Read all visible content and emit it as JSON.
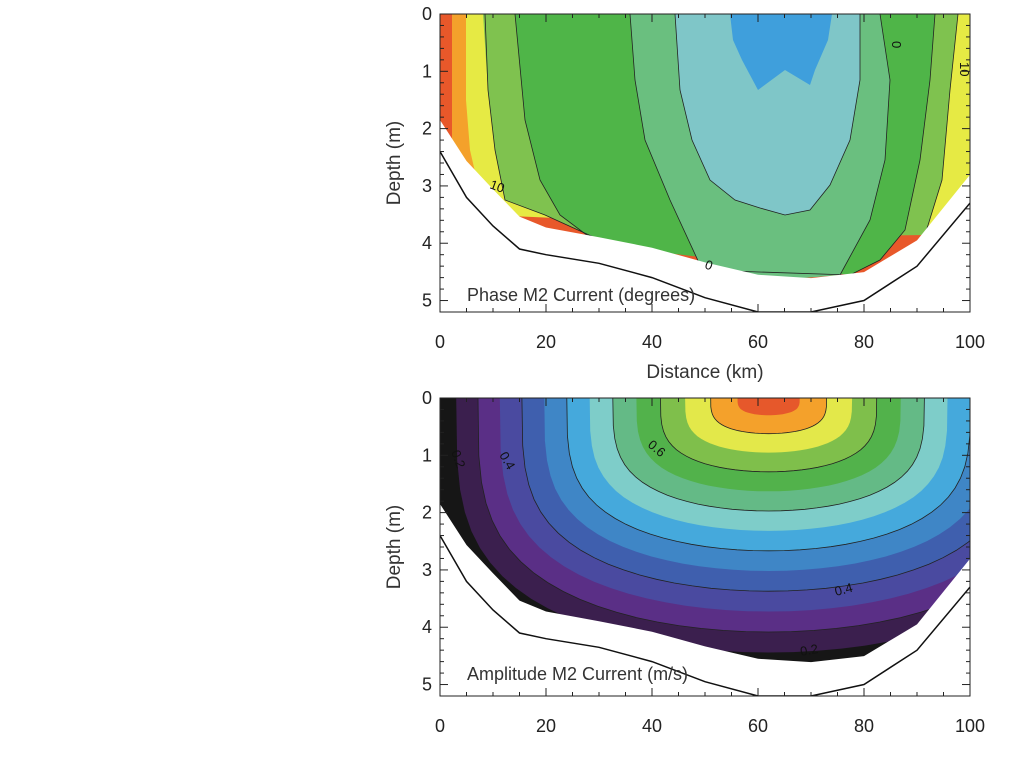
{
  "chart_data": [
    {
      "type": "heatmap",
      "title": "Phase M2 Current (degrees)",
      "xlabel": "Distance (km)",
      "ylabel": "Depth (m)",
      "xlim": [
        0,
        100
      ],
      "ylim": [
        5.2,
        0
      ],
      "x_ticks": [
        "0",
        "20",
        "40",
        "60",
        "80",
        "100"
      ],
      "y_ticks": [
        "0",
        "1",
        "2",
        "3",
        "4",
        "5"
      ],
      "x_tick_values": [
        0,
        20,
        40,
        60,
        80,
        100
      ],
      "y_tick_values": [
        0,
        1,
        2,
        3,
        4,
        5
      ],
      "bathymetry": {
        "x": [
          0,
          5,
          10,
          15,
          20,
          30,
          40,
          50,
          60,
          70,
          80,
          90,
          100
        ],
        "depth": [
          2.4,
          3.2,
          3.7,
          4.1,
          4.2,
          4.35,
          4.6,
          4.95,
          5.2,
          5.2,
          5.0,
          4.4,
          3.3
        ]
      },
      "colors": [
        "#e8582a",
        "#f4a12b",
        "#e6ea44",
        "#7fc24f",
        "#4fb548",
        "#6abf7f",
        "#7fc6c8",
        "#3f9fdc"
      ],
      "contour_labels": [
        "0",
        "10",
        "10",
        "0"
      ]
    },
    {
      "type": "heatmap",
      "title": "Amplitude M2 Current (m/s)",
      "xlabel": "",
      "ylabel": "Depth (m)",
      "xlim": [
        0,
        100
      ],
      "ylim": [
        5.2,
        0
      ],
      "x_ticks": [
        "0",
        "20",
        "40",
        "60",
        "80",
        "100"
      ],
      "y_ticks": [
        "0",
        "1",
        "2",
        "3",
        "4",
        "5"
      ],
      "x_tick_values": [
        0,
        20,
        40,
        60,
        80,
        100
      ],
      "y_tick_values": [
        0,
        1,
        2,
        3,
        4,
        5
      ],
      "bathymetry": {
        "x": [
          0,
          5,
          10,
          15,
          20,
          30,
          40,
          50,
          60,
          70,
          80,
          90,
          100
        ],
        "depth": [
          2.4,
          3.2,
          3.7,
          4.1,
          4.2,
          4.35,
          4.6,
          4.95,
          5.2,
          5.2,
          5.0,
          4.4,
          3.3
        ]
      },
      "levels": [
        0.0,
        0.05,
        0.1,
        0.15,
        0.2,
        0.25,
        0.3,
        0.35,
        0.4,
        0.45,
        0.5,
        0.55,
        0.6,
        0.65,
        0.7
      ],
      "colors": [
        "#161616",
        "#3b1f4e",
        "#5a2f86",
        "#4a4aa0",
        "#3f5fae",
        "#3f86c6",
        "#45a9dc",
        "#7ecdc9",
        "#64ba86",
        "#52b24b",
        "#7fbf4b",
        "#e3e84a",
        "#f4a12b",
        "#e6582b"
      ],
      "contour_labels": [
        "0.2",
        "0.4",
        "0.6",
        "0.4",
        "0.2"
      ]
    }
  ]
}
